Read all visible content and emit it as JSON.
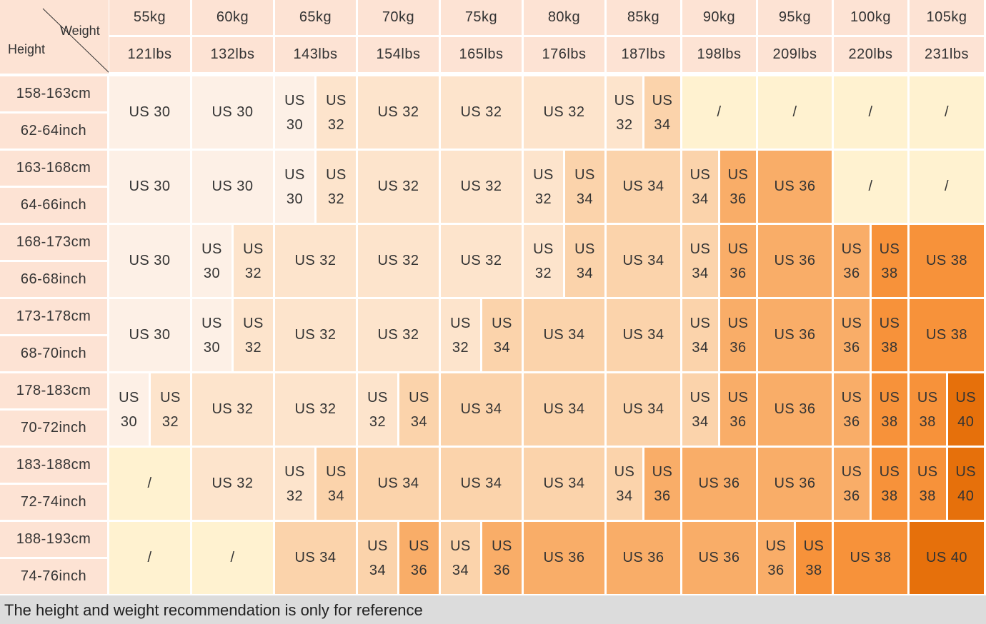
{
  "corner": {
    "weight": "Weight",
    "height": "Height"
  },
  "palette": {
    "US 30": "#fdf0e6",
    "US 32": "#fde4cc",
    "US 34": "#fbd3ab",
    "US 36": "#f9ad68",
    "US 38": "#f7923a",
    "US 40": "#e6700b",
    "/": "#fff2d0"
  },
  "columns": [
    {
      "kg": "55kg",
      "lbs": "121lbs"
    },
    {
      "kg": "60kg",
      "lbs": "132lbs"
    },
    {
      "kg": "65kg",
      "lbs": "143lbs"
    },
    {
      "kg": "70kg",
      "lbs": "154lbs"
    },
    {
      "kg": "75kg",
      "lbs": "165lbs"
    },
    {
      "kg": "80kg",
      "lbs": "176lbs"
    },
    {
      "kg": "85kg",
      "lbs": "187lbs"
    },
    {
      "kg": "90kg",
      "lbs": "198lbs"
    },
    {
      "kg": "95kg",
      "lbs": "209lbs"
    },
    {
      "kg": "100kg",
      "lbs": "220lbs"
    },
    {
      "kg": "105kg",
      "lbs": "231lbs"
    }
  ],
  "rows": [
    {
      "cm": "158-163cm",
      "inch": "62-64inch",
      "cells": [
        [
          "US 30"
        ],
        [
          "US 30"
        ],
        [
          "US 30",
          "US 32"
        ],
        [
          "US 32"
        ],
        [
          "US 32"
        ],
        [
          "US 32"
        ],
        [
          "US 32",
          "US 34"
        ],
        [
          "/"
        ],
        [
          "/"
        ],
        [
          "/"
        ],
        [
          "/"
        ]
      ]
    },
    {
      "cm": "163-168cm",
      "inch": "64-66inch",
      "cells": [
        [
          "US 30"
        ],
        [
          "US 30"
        ],
        [
          "US 30",
          "US 32"
        ],
        [
          "US 32"
        ],
        [
          "US 32"
        ],
        [
          "US 32",
          "US 34"
        ],
        [
          "US 34"
        ],
        [
          "US 34",
          "US 36"
        ],
        [
          "US 36"
        ],
        [
          "/"
        ],
        [
          "/"
        ]
      ]
    },
    {
      "cm": "168-173cm",
      "inch": "66-68inch",
      "cells": [
        [
          "US 30"
        ],
        [
          "US 30",
          "US 32"
        ],
        [
          "US 32"
        ],
        [
          "US 32"
        ],
        [
          "US 32"
        ],
        [
          "US 32",
          "US 34"
        ],
        [
          "US 34"
        ],
        [
          "US 34",
          "US 36"
        ],
        [
          "US 36"
        ],
        [
          "US 36",
          "US 38"
        ],
        [
          "US 38"
        ]
      ]
    },
    {
      "cm": "173-178cm",
      "inch": "68-70inch",
      "cells": [
        [
          "US 30"
        ],
        [
          "US 30",
          "US 32"
        ],
        [
          "US 32"
        ],
        [
          "US 32"
        ],
        [
          "US 32",
          "US 34"
        ],
        [
          "US 34"
        ],
        [
          "US 34"
        ],
        [
          "US 34",
          "US 36"
        ],
        [
          "US 36"
        ],
        [
          "US 36",
          "US 38"
        ],
        [
          "US 38"
        ]
      ]
    },
    {
      "cm": "178-183cm",
      "inch": "70-72inch",
      "cells": [
        [
          "US 30",
          "US 32"
        ],
        [
          "US 32"
        ],
        [
          "US 32"
        ],
        [
          "US 32",
          "US 34"
        ],
        [
          "US 34"
        ],
        [
          "US 34"
        ],
        [
          "US 34"
        ],
        [
          "US 34",
          "US 36"
        ],
        [
          "US 36"
        ],
        [
          "US 36",
          "US 38"
        ],
        [
          "US 38",
          "US 40"
        ]
      ]
    },
    {
      "cm": "183-188cm",
      "inch": "72-74inch",
      "cells": [
        [
          "/"
        ],
        [
          "US 32"
        ],
        [
          "US 32",
          "US 34"
        ],
        [
          "US 34"
        ],
        [
          "US 34"
        ],
        [
          "US 34"
        ],
        [
          "US 34",
          "US 36"
        ],
        [
          "US 36"
        ],
        [
          "US 36"
        ],
        [
          "US 36",
          "US 38"
        ],
        [
          "US 38",
          "US 40"
        ]
      ]
    },
    {
      "cm": "188-193cm",
      "inch": "74-76inch",
      "cells": [
        [
          "/"
        ],
        [
          "/"
        ],
        [
          "US 34"
        ],
        [
          "US 34",
          "US 36"
        ],
        [
          "US 34",
          "US 36"
        ],
        [
          "US 36"
        ],
        [
          "US 36"
        ],
        [
          "US 36"
        ],
        [
          "US 36",
          "US 38"
        ],
        [
          "US 38"
        ],
        [
          "US 40"
        ]
      ]
    }
  ],
  "footer": "The height and weight recommendation is only for reference"
}
